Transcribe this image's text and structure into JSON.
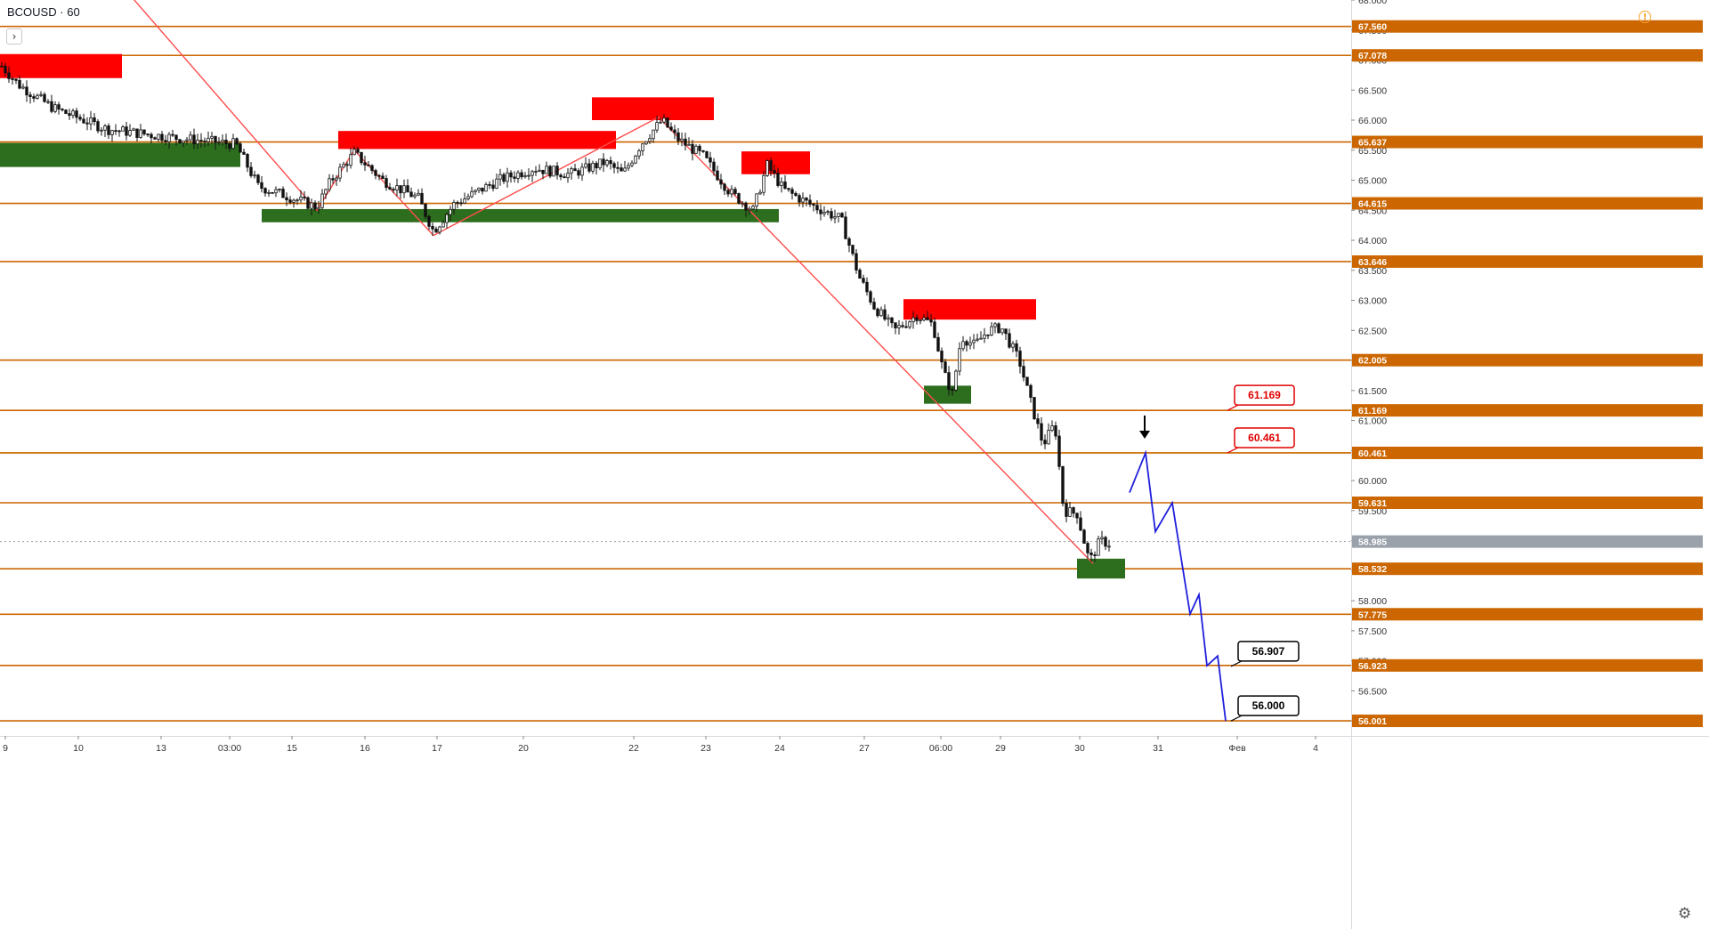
{
  "header": {
    "symbol": "BCOUSD",
    "interval": "60",
    "collapse_glyph": "›",
    "warning_glyph": "!"
  },
  "settings_glyph": "⚙",
  "colors": {
    "level_line": "#cc6600",
    "level_tag": "#cc6600",
    "resistance_zone": "#ff0000",
    "support_zone": "#2d6e1e",
    "trendline": "#ff4d4d",
    "projection": "#1f1fdd",
    "candle": "#111111",
    "current_price_tag": "#9aa1ab"
  },
  "chart_data": {
    "type": "candlestick",
    "symbol": "BCOUSD",
    "interval": "60",
    "ylim": [
      55.75,
      68.0
    ],
    "y_ticks": [
      "68.000",
      "67.500",
      "67.000",
      "66.500",
      "66.000",
      "65.500",
      "65.000",
      "64.500",
      "64.000",
      "63.500",
      "63.000",
      "62.500",
      "62.000",
      "61.500",
      "61.000",
      "60.500",
      "60.000",
      "59.500",
      "59.000",
      "58.500",
      "58.000",
      "57.500",
      "57.000",
      "56.500",
      "56.000"
    ],
    "x_ticks": [
      "9",
      "10",
      "13",
      "03:00",
      "15",
      "16",
      "17",
      "20",
      "22",
      "23",
      "24",
      "27",
      "06:00",
      "29",
      "30",
      "31",
      "Фев",
      "4"
    ],
    "levels": [
      {
        "price": 67.56,
        "label": "67.560"
      },
      {
        "price": 67.078,
        "label": "67.078"
      },
      {
        "price": 65.637,
        "label": "65.637"
      },
      {
        "price": 64.615,
        "label": "64.615"
      },
      {
        "price": 63.646,
        "label": "63.646"
      },
      {
        "price": 62.005,
        "label": "62.005"
      },
      {
        "price": 61.169,
        "label": "61.169"
      },
      {
        "price": 60.461,
        "label": "60.461"
      },
      {
        "price": 59.631,
        "label": "59.631"
      },
      {
        "price": 58.532,
        "label": "58.532"
      },
      {
        "price": 57.775,
        "label": "57.775"
      },
      {
        "price": 56.923,
        "label": "56.923"
      },
      {
        "price": 56.001,
        "label": "56.001"
      }
    ],
    "current_price": {
      "price": 58.985,
      "label": "58.985"
    },
    "resistance_zones": [
      {
        "x_start": "9",
        "x_end": "10",
        "low": 66.7,
        "high": 67.1
      },
      {
        "x_start": "15",
        "x_end": "20",
        "low": 65.52,
        "high": 65.82
      },
      {
        "x_start": "20",
        "x_end": "20",
        "low": 66.0,
        "high": 66.38
      },
      {
        "x_start": "22",
        "x_end": "22",
        "low": 65.1,
        "high": 65.48
      },
      {
        "x_start": "23",
        "x_end": "24",
        "low": 62.68,
        "high": 63.02
      }
    ],
    "support_zones": [
      {
        "x_start": "9",
        "x_end": "13",
        "low": 65.22,
        "high": 65.62
      },
      {
        "x_start": "03:00",
        "x_end": "22",
        "low": 64.3,
        "high": 64.52
      },
      {
        "x_start": "23",
        "x_end": "24",
        "low": 61.28,
        "high": 61.58
      },
      {
        "x_start": "27",
        "x_end": "27",
        "low": 58.37,
        "high": 58.7
      }
    ],
    "callouts": [
      {
        "label": "61.169",
        "price": 61.169,
        "color": "red"
      },
      {
        "label": "60.461",
        "price": 60.461,
        "color": "red"
      },
      {
        "label": "56.907",
        "price": 56.907,
        "color": "black"
      },
      {
        "label": "56.000",
        "price": 56.0,
        "color": "black"
      }
    ],
    "projection_path": [
      59.8,
      60.461,
      59.15,
      59.63,
      57.78,
      58.1,
      56.92,
      57.08,
      56.0
    ],
    "annotation_arrow": "down"
  }
}
